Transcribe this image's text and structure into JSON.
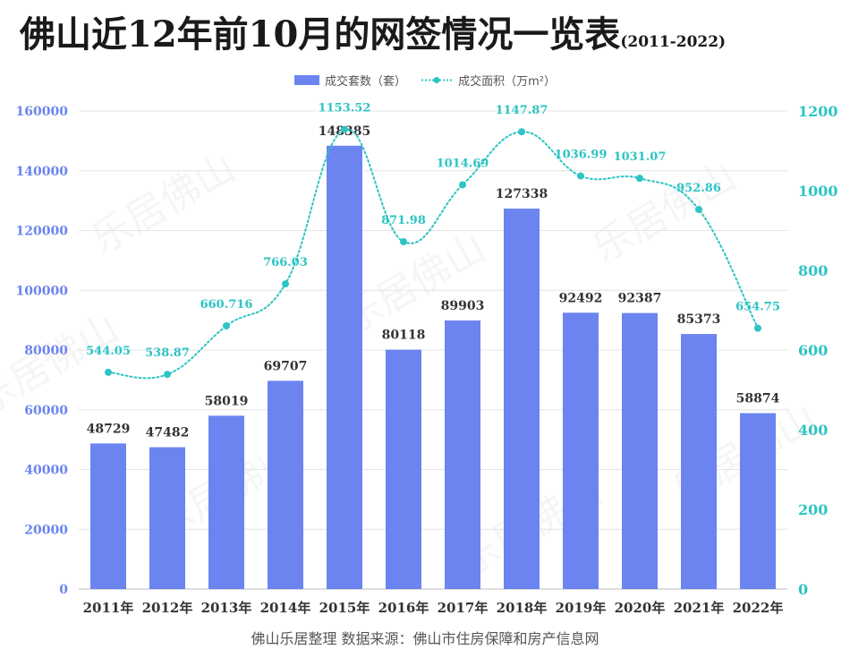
{
  "title": "佛山近12年前10月的网签情况一览表",
  "title_sub": "(2011-2022)",
  "footer": "佛山乐居整理   数据来源：佛山市住房保障和房产信息网",
  "watermark": "乐居佛山",
  "colors": {
    "bar": "#6b84f0",
    "line": "#2cc4c4",
    "left_axis": "#6b84f0",
    "right_axis": "#2cc4c4"
  },
  "chart_data": {
    "type": "bar",
    "categories": [
      "2011年",
      "2012年",
      "2013年",
      "2014年",
      "2015年",
      "2016年",
      "2017年",
      "2018年",
      "2019年",
      "2020年",
      "2021年",
      "2022年"
    ],
    "series": [
      {
        "name": "成交套数（套）",
        "type": "bar",
        "axis": "left",
        "values": [
          48729,
          47482,
          58019,
          69707,
          148385,
          80118,
          89903,
          127338,
          92492,
          92387,
          85373,
          58874
        ],
        "labels": [
          "48729",
          "47482",
          "58019",
          "69707",
          "148385",
          "80118",
          "89903",
          "127338",
          "92492",
          "92387",
          "85373",
          "58874"
        ]
      },
      {
        "name": "成交面积（万m²）",
        "type": "line",
        "axis": "right",
        "values": [
          544.05,
          538.87,
          660.716,
          766.03,
          1153.52,
          871.98,
          1014.69,
          1147.87,
          1036.99,
          1031.07,
          952.86,
          654.75
        ],
        "labels": [
          "544.05",
          "538.87",
          "660.716",
          "766.03",
          "1153.52",
          "871.98",
          "1014.69",
          "1147.87",
          "1036.99",
          "1031.07",
          "952.86",
          "654.75"
        ]
      }
    ],
    "y_left": {
      "min": 0,
      "max": 160000,
      "ticks": [
        "0",
        "20000",
        "40000",
        "60000",
        "80000",
        "100000",
        "120000",
        "140000",
        "160000"
      ]
    },
    "y_right": {
      "min": 0,
      "max": 1200,
      "ticks": [
        "0",
        "200",
        "400",
        "600",
        "800",
        "1000",
        "1200"
      ]
    },
    "grid": true,
    "legend": "top-center"
  }
}
